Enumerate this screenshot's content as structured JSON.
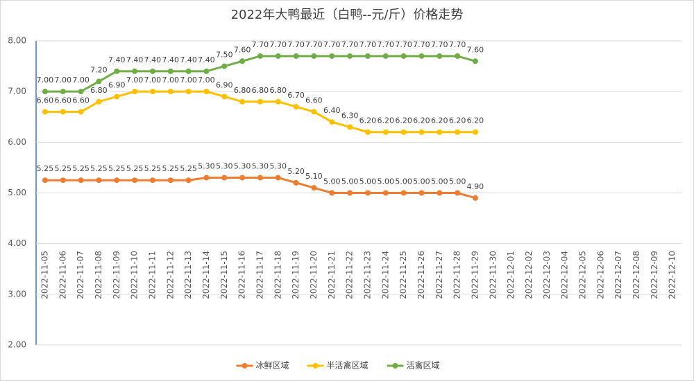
{
  "chart_data": {
    "type": "line",
    "title": "2022年大鸭最近（白鸭--元/斤）价格走势",
    "categories": [
      "2022-11-05",
      "2022-11-06",
      "2022-11-07",
      "2022-11-08",
      "2022-11-09",
      "2022-11-10",
      "2022-11-11",
      "2022-11-12",
      "2022-11-13",
      "2022-11-14",
      "2022-11-15",
      "2022-11-16",
      "2022-11-17",
      "2022-11-18",
      "2022-11-19",
      "2022-11-20",
      "2022-11-21",
      "2022-11-22",
      "2022-11-23",
      "2022-11-24",
      "2022-11-25",
      "2022-11-26",
      "2022-11-27",
      "2022-11-28",
      "2022-11-29",
      "2022-11-30",
      "2022-12-01",
      "2022-12-02",
      "2022-12-03",
      "2022-12-04",
      "2022-12-05",
      "2022-12-06",
      "2022-12-07",
      "2022-12-08",
      "2022-12-09",
      "2022-12-10"
    ],
    "series": [
      {
        "name": "冰鲜区域",
        "color": "#ed7d31",
        "values": [
          5.25,
          5.25,
          5.25,
          5.25,
          5.25,
          5.25,
          5.25,
          5.25,
          5.25,
          5.3,
          5.3,
          5.3,
          5.3,
          5.3,
          5.2,
          5.1,
          5,
          5,
          5,
          5,
          5,
          5,
          5,
          5,
          4.9,
          null,
          null,
          null,
          null,
          null,
          null,
          null,
          null,
          null,
          null,
          null
        ],
        "value_labels": [
          "5.25",
          "5.25",
          "5.25",
          "5.25",
          "5.25",
          "5.25",
          "5.25",
          "5.25",
          "5.25",
          "5.30",
          "5.30",
          "5.30",
          "5.30",
          "5.30",
          "5.20",
          "5.10",
          "5.00",
          "5.00",
          "5.00",
          "5.00",
          "5.00",
          "5.00",
          "5.00",
          "5.00",
          "4.90",
          null,
          null,
          null,
          null,
          null,
          null,
          null,
          null,
          null,
          null,
          null
        ]
      },
      {
        "name": "半活禽区域",
        "color": "#ffc000",
        "values": [
          6.6,
          6.6,
          6.6,
          6.8,
          6.9,
          7,
          7,
          7,
          7,
          7,
          6.9,
          6.8,
          6.8,
          6.8,
          6.7,
          6.6,
          6.4,
          6.3,
          6.2,
          6.2,
          6.2,
          6.2,
          6.2,
          6.2,
          6.2,
          null,
          null,
          null,
          null,
          null,
          null,
          null,
          null,
          null,
          null,
          null
        ],
        "value_labels": [
          "6.60",
          "6.60",
          "6.60",
          "6.80",
          "6.90",
          "7.00",
          "7.00",
          "7.00",
          "7.00",
          "7.00",
          "6.90",
          "6.80",
          "6.80",
          "6.80",
          "6.70",
          "6.60",
          "6.40",
          "6.30",
          "6.20",
          "6.20",
          "6.20",
          "6.20",
          "6.20",
          "6.20",
          "6.20",
          null,
          null,
          null,
          null,
          null,
          null,
          null,
          null,
          null,
          null,
          null
        ]
      },
      {
        "name": "活禽区域",
        "color": "#70ad47",
        "values": [
          7,
          7,
          7,
          7.2,
          7.4,
          7.4,
          7.4,
          7.4,
          7.4,
          7.4,
          7.5,
          7.6,
          7.7,
          7.7,
          7.7,
          7.7,
          7.7,
          7.7,
          7.7,
          7.7,
          7.7,
          7.7,
          7.7,
          7.7,
          7.6,
          null,
          null,
          null,
          null,
          null,
          null,
          null,
          null,
          null,
          null,
          null
        ],
        "value_labels": [
          "7.00",
          "7.00",
          "7.00",
          "7.20",
          "7.40",
          "7.40",
          "7.40",
          "7.40",
          "7.40",
          "7.40",
          "7.50",
          "7.60",
          "7.70",
          "7.70",
          "7.70",
          "7.70",
          "7.70",
          "7.70",
          "7.70",
          "7.70",
          "7.70",
          "7.70",
          "7.70",
          "7.70",
          "7.60",
          null,
          null,
          null,
          null,
          null,
          null,
          null,
          null,
          null,
          null,
          null
        ]
      }
    ],
    "ylim": [
      2,
      8
    ],
    "yticks": [
      {
        "value": 2,
        "label": "2.00"
      },
      {
        "value": 3,
        "label": "3.00"
      },
      {
        "value": 4,
        "label": "4.00"
      },
      {
        "value": 5,
        "label": "5.00"
      },
      {
        "value": 6,
        "label": "6.00"
      },
      {
        "value": 7,
        "label": "7.00"
      },
      {
        "value": 8,
        "label": "8.00"
      }
    ],
    "grid": true,
    "legend": "bottom"
  }
}
